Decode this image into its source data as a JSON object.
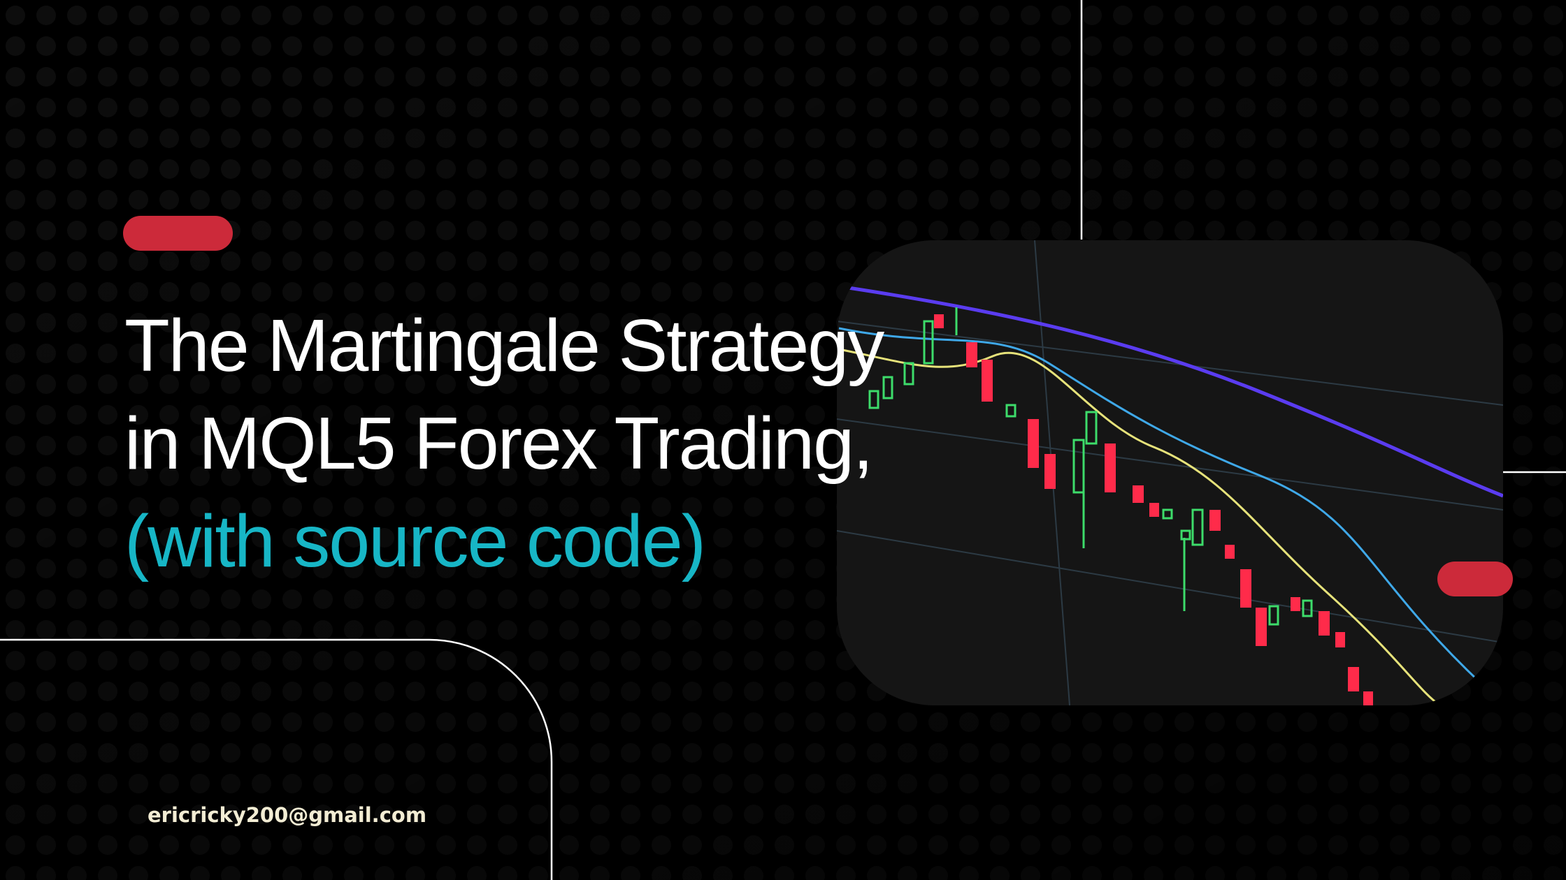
{
  "header": {
    "title_lines": [
      "The Martingale Strategy",
      "in MQL5 Forex Trading,"
    ],
    "subtitle": "(with source code)"
  },
  "footer": {
    "email": "ericricky200@gmail.com"
  }
}
